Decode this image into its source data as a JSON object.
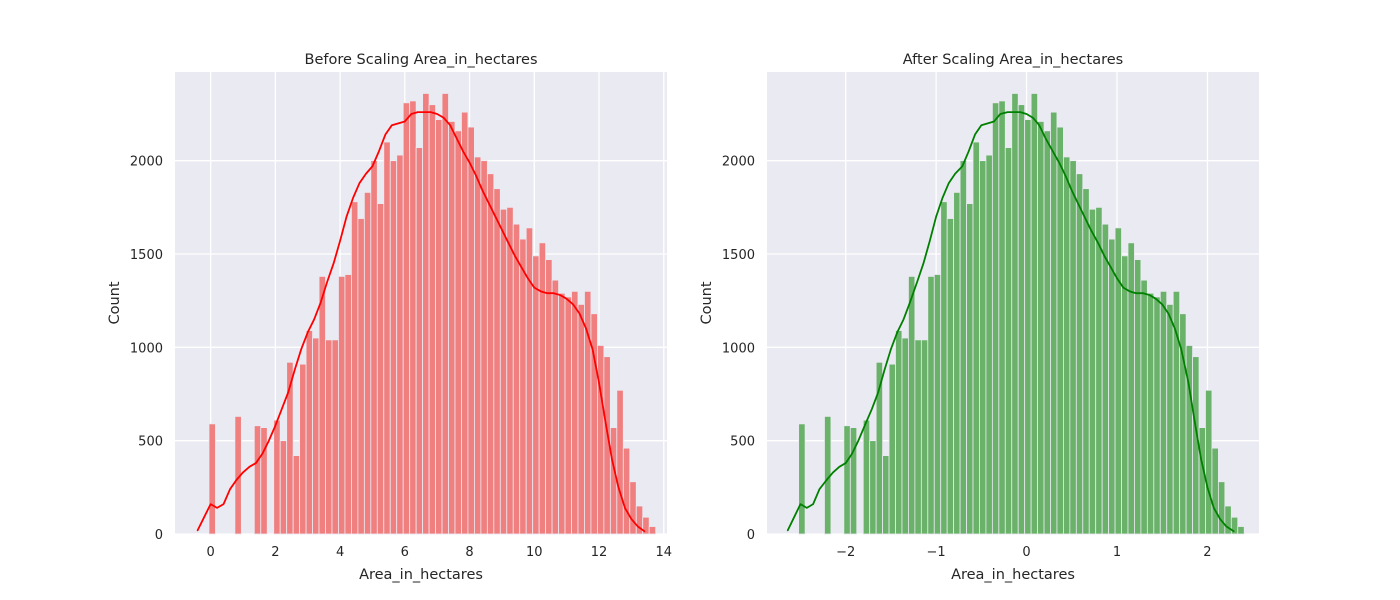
{
  "chart_data": [
    {
      "type": "bar",
      "subtype": "histogram-with-kde",
      "title": "Before Scaling Area_in_hectares",
      "xlabel": "Area_in_hectares",
      "ylabel": "Count",
      "xlim": [
        -1.1,
        14.1
      ],
      "ylim": [
        0,
        2475
      ],
      "xticks": [
        0,
        2,
        4,
        6,
        8,
        10,
        12,
        14
      ],
      "xtick_labels": [
        "0",
        "2",
        "4",
        "6",
        "8",
        "10",
        "12",
        "14"
      ],
      "yticks": [
        0,
        500,
        1000,
        1500,
        2000
      ],
      "ytick_labels": [
        "0",
        "500",
        "1000",
        "1500",
        "2000"
      ],
      "grid": true,
      "bar_color": "#f08080",
      "line_color": "#ff0000",
      "bins": {
        "start": -0.05,
        "width": 0.2,
        "counts": [
          590,
          0,
          0,
          0,
          630,
          0,
          0,
          580,
          570,
          0,
          610,
          500,
          920,
          420,
          910,
          1090,
          1050,
          1380,
          1040,
          1040,
          1380,
          1390,
          1780,
          1690,
          1830,
          2000,
          1770,
          2100,
          2000,
          2030,
          2310,
          2320,
          2070,
          2360,
          2300,
          2220,
          2360,
          2210,
          2160,
          2260,
          2180,
          2020,
          2000,
          1930,
          1850,
          1740,
          1750,
          1660,
          1580,
          1640,
          1490,
          1560,
          1470,
          1360,
          1290,
          1270,
          1300,
          1230,
          1300,
          1180,
          1010,
          950,
          570,
          770,
          460,
          280,
          150,
          90,
          40
        ]
      },
      "kde": {
        "x": [
          -0.4,
          -0.2,
          0,
          0.2,
          0.4,
          0.6,
          0.8,
          1.0,
          1.2,
          1.4,
          1.6,
          1.8,
          2.0,
          2.2,
          2.4,
          2.6,
          2.8,
          3.0,
          3.2,
          3.4,
          3.6,
          3.8,
          4.0,
          4.2,
          4.4,
          4.6,
          4.8,
          5.0,
          5.2,
          5.4,
          5.6,
          5.8,
          6.0,
          6.2,
          6.4,
          6.6,
          6.8,
          7.0,
          7.2,
          7.4,
          7.6,
          7.8,
          8.0,
          8.2,
          8.4,
          8.6,
          8.8,
          9.0,
          9.2,
          9.4,
          9.6,
          9.8,
          10.0,
          10.2,
          10.4,
          10.6,
          10.8,
          11.0,
          11.2,
          11.4,
          11.6,
          11.8,
          12.0,
          12.2,
          12.4,
          12.6,
          12.8,
          13.0,
          13.2,
          13.4
        ],
        "y": [
          20,
          90,
          160,
          140,
          160,
          240,
          290,
          330,
          360,
          380,
          430,
          500,
          580,
          670,
          760,
          880,
          990,
          1080,
          1150,
          1240,
          1350,
          1450,
          1570,
          1700,
          1800,
          1880,
          1930,
          1970,
          2050,
          2140,
          2190,
          2200,
          2210,
          2250,
          2260,
          2260,
          2260,
          2250,
          2230,
          2190,
          2120,
          2050,
          1990,
          1920,
          1840,
          1770,
          1700,
          1630,
          1560,
          1490,
          1430,
          1370,
          1320,
          1300,
          1290,
          1290,
          1280,
          1260,
          1230,
          1180,
          1100,
          990,
          810,
          600,
          400,
          250,
          140,
          80,
          40,
          15
        ]
      }
    },
    {
      "type": "bar",
      "subtype": "histogram-with-kde",
      "title": "After Scaling Area_in_hectares",
      "xlabel": "Area_in_hectares",
      "ylabel": "Count",
      "xlim": [
        -2.87,
        2.57
      ],
      "ylim": [
        0,
        2475
      ],
      "xticks": [
        -2,
        -1,
        0,
        1,
        2
      ],
      "xtick_labels": [
        "−2",
        "−1",
        "0",
        "1",
        "2"
      ],
      "yticks": [
        0,
        500,
        1000,
        1500,
        2000
      ],
      "ytick_labels": [
        "0",
        "500",
        "1000",
        "1500",
        "2000"
      ],
      "grid": true,
      "bar_color": "#6ab26a",
      "line_color": "#008000",
      "bins": {
        "start": -2.52,
        "width": 0.0714,
        "counts": [
          590,
          0,
          0,
          0,
          630,
          0,
          0,
          580,
          570,
          0,
          610,
          500,
          920,
          420,
          910,
          1090,
          1050,
          1380,
          1040,
          1040,
          1380,
          1390,
          1780,
          1690,
          1830,
          2000,
          1770,
          2100,
          2000,
          2030,
          2310,
          2320,
          2070,
          2360,
          2300,
          2220,
          2360,
          2210,
          2160,
          2260,
          2180,
          2020,
          2000,
          1930,
          1850,
          1740,
          1750,
          1660,
          1580,
          1640,
          1490,
          1560,
          1470,
          1360,
          1290,
          1270,
          1300,
          1230,
          1300,
          1180,
          1010,
          950,
          570,
          770,
          460,
          280,
          150,
          90,
          40
        ]
      },
      "kde": {
        "x": [
          -2.64,
          -2.57,
          -2.5,
          -2.43,
          -2.36,
          -2.29,
          -2.21,
          -2.14,
          -2.07,
          -2.0,
          -1.93,
          -1.86,
          -1.79,
          -1.71,
          -1.64,
          -1.57,
          -1.5,
          -1.43,
          -1.36,
          -1.29,
          -1.21,
          -1.14,
          -1.07,
          -1.0,
          -0.93,
          -0.86,
          -0.79,
          -0.71,
          -0.64,
          -0.57,
          -0.5,
          -0.43,
          -0.36,
          -0.29,
          -0.21,
          -0.14,
          -0.07,
          0.0,
          0.07,
          0.14,
          0.21,
          0.29,
          0.36,
          0.43,
          0.5,
          0.57,
          0.64,
          0.71,
          0.79,
          0.86,
          0.93,
          1.0,
          1.07,
          1.14,
          1.21,
          1.29,
          1.36,
          1.43,
          1.5,
          1.57,
          1.64,
          1.71,
          1.79,
          1.86,
          1.93,
          2.0,
          2.07,
          2.14,
          2.21,
          2.29
        ],
        "y": [
          20,
          90,
          160,
          140,
          160,
          240,
          290,
          330,
          360,
          380,
          430,
          500,
          580,
          670,
          760,
          880,
          990,
          1080,
          1150,
          1240,
          1350,
          1450,
          1570,
          1700,
          1800,
          1880,
          1930,
          1970,
          2050,
          2140,
          2190,
          2200,
          2210,
          2250,
          2260,
          2260,
          2260,
          2250,
          2230,
          2190,
          2120,
          2050,
          1990,
          1920,
          1840,
          1770,
          1700,
          1630,
          1560,
          1490,
          1430,
          1370,
          1320,
          1300,
          1290,
          1290,
          1280,
          1260,
          1230,
          1180,
          1100,
          990,
          810,
          600,
          400,
          250,
          140,
          80,
          40,
          15
        ]
      }
    }
  ]
}
